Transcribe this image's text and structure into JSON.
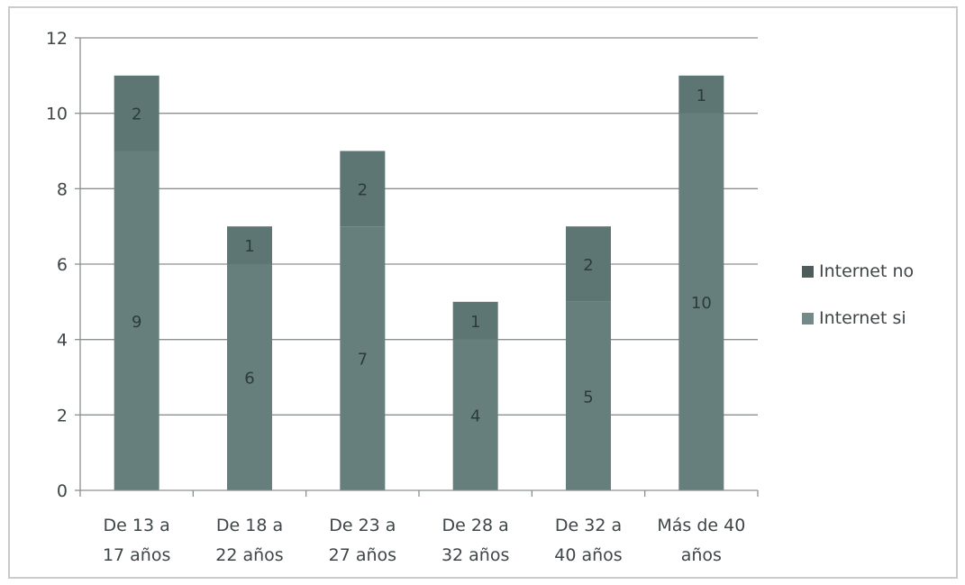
{
  "chart_data": {
    "type": "bar",
    "stacked": true,
    "categories": [
      [
        "De 13 a",
        "17 años"
      ],
      [
        "De 18 a",
        "22 años"
      ],
      [
        "De 23 a",
        "27 años"
      ],
      [
        "De 28 a",
        "32 años"
      ],
      [
        "De 32 a",
        "40 años"
      ],
      [
        "Más de 40",
        "años"
      ]
    ],
    "series": [
      {
        "name": "Internet si",
        "values": [
          9,
          6,
          7,
          4,
          5,
          10
        ],
        "color": "#667f7c"
      },
      {
        "name": "Internet no",
        "values": [
          2,
          1,
          2,
          1,
          2,
          1
        ],
        "color": "#5d7673"
      }
    ],
    "bar_fill": "#627b78",
    "ylim": [
      0,
      12
    ],
    "yticks": [
      0,
      2,
      4,
      6,
      8,
      10,
      12
    ],
    "grid": true,
    "legend_position": "right",
    "legend": [
      "Internet no",
      "Internet si"
    ],
    "legend_colors": [
      "#4e5c5b",
      "#748a88"
    ]
  }
}
